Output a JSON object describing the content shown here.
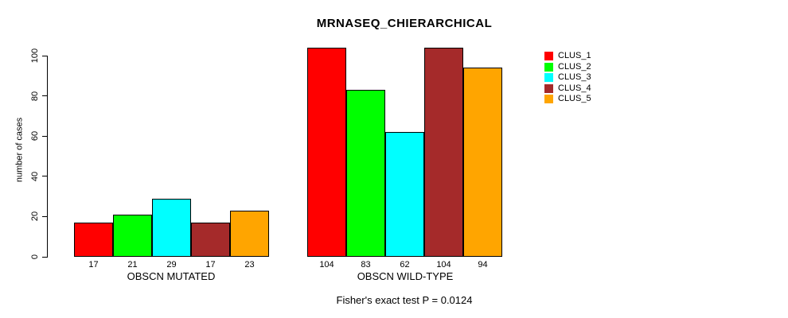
{
  "chart_data": {
    "type": "bar",
    "title": "MRNASEQ_CHIERARCHICAL",
    "ylabel": "number of cases",
    "xlabel": "",
    "groups": [
      {
        "label": "OBSCN MUTATED",
        "values": [
          17,
          21,
          29,
          17,
          23
        ]
      },
      {
        "label": "OBSCN WILD-TYPE",
        "values": [
          104,
          83,
          62,
          104,
          94
        ]
      }
    ],
    "series": [
      {
        "name": "CLUS_1",
        "color": "#FF0000"
      },
      {
        "name": "CLUS_2",
        "color": "#00FF00"
      },
      {
        "name": "CLUS_3",
        "color": "#00FFFF"
      },
      {
        "name": "CLUS_4",
        "color": "#A52A2A"
      },
      {
        "name": "CLUS_5",
        "color": "#FFA500"
      }
    ],
    "yticks": [
      0,
      20,
      40,
      60,
      80,
      100
    ],
    "ylim": [
      0,
      104
    ],
    "grid": false,
    "legend_position": "right",
    "bar_border_color": "#000000",
    "footnote": "Fisher's exact test P = 0.0124"
  }
}
